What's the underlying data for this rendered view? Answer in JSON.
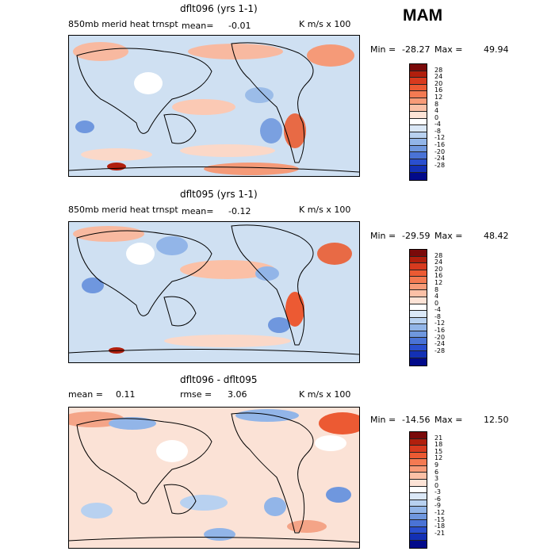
{
  "season": "MAM",
  "panels": [
    {
      "title": "dflt096 (yrs 1-1)",
      "left_label": "850mb merid heat trnspt",
      "mean_label": "mean=",
      "mean_value": "-0.01",
      "rmse_label": "",
      "rmse_value": "",
      "units": "K m/s x 100",
      "min_label": "Min =",
      "min_value": "-28.27",
      "max_label": "Max =",
      "max_value": "49.94",
      "colorbar_labels": [
        "28",
        "24",
        "20",
        "16",
        "12",
        "8",
        "4",
        "0",
        "-4",
        "-8",
        "-12",
        "-16",
        "-20",
        "-24",
        "-28"
      ]
    },
    {
      "title": "dflt095 (yrs 1-1)",
      "left_label": "850mb merid heat trnspt",
      "mean_label": "mean=",
      "mean_value": "-0.12",
      "rmse_label": "",
      "rmse_value": "",
      "units": "K m/s x 100",
      "min_label": "Min =",
      "min_value": "-29.59",
      "max_label": "Max =",
      "max_value": "48.42",
      "colorbar_labels": [
        "28",
        "24",
        "20",
        "16",
        "12",
        "8",
        "4",
        "0",
        "-4",
        "-8",
        "-12",
        "-16",
        "-20",
        "-24",
        "-28"
      ]
    },
    {
      "title": "dflt096 - dflt095",
      "left_label": "",
      "mean_label": "mean =",
      "mean_value": "0.11",
      "rmse_label": "rmse =",
      "rmse_value": "3.06",
      "units": "K m/s x 100",
      "min_label": "Min =",
      "min_value": "-14.56",
      "max_label": "Max =",
      "max_value": "12.50",
      "colorbar_labels": [
        "21",
        "18",
        "15",
        "12",
        "9",
        "6",
        "3",
        "0",
        "-3",
        "-6",
        "-9",
        "-12",
        "-15",
        "-18",
        "-21"
      ]
    }
  ],
  "colorbar_colors": [
    "#7a0a0a",
    "#b11f0d",
    "#d83a1e",
    "#ec5a33",
    "#f47a52",
    "#f89b78",
    "#fbc0a6",
    "#fde3d6",
    "#ffffff",
    "#dbe8f7",
    "#b8d1f0",
    "#92b5e8",
    "#6f97de",
    "#4a73d6",
    "#2a4fcf",
    "#1330b5",
    "#020a8a"
  ]
}
